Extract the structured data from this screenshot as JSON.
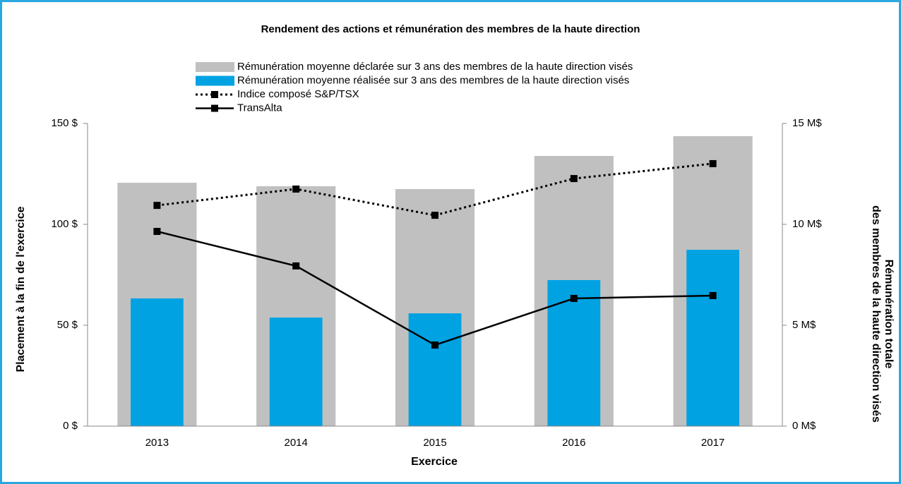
{
  "chart_data": {
    "type": "combo",
    "title": "Rendement des actions et rémunération des membres de la haute direction",
    "x_label": "Exercice",
    "y_label": "Placement à la fin de l'exercice",
    "y2_label": [
      "Rémunération totale",
      "des membres de la haute direction visés"
    ],
    "categories": [
      "2013",
      "2014",
      "2015",
      "2016",
      "2017"
    ],
    "ylim": [
      0,
      150
    ],
    "yticks": [
      {
        "value": 0,
        "label": "0 $"
      },
      {
        "value": 50,
        "label": "50 $"
      },
      {
        "value": 100,
        "label": "100 $"
      },
      {
        "value": 150,
        "label": "150 $"
      }
    ],
    "y2lim": [
      0,
      15
    ],
    "y2ticks": [
      {
        "value": 0,
        "label": "0 M$"
      },
      {
        "value": 5,
        "label": "5 M$"
      },
      {
        "value": 10,
        "label": "10 M$"
      },
      {
        "value": 15,
        "label": "15 M$"
      }
    ],
    "legend": "top",
    "series": [
      {
        "name": "Rémunération moyenne déclarée sur 3 ans des membres de la haute direction visés",
        "type": "bar",
        "axis": "y2",
        "color": "#c0c0c0",
        "width": 0.57,
        "values": [
          12.06,
          11.89,
          11.75,
          13.39,
          14.37
        ]
      },
      {
        "name": "Rémunération moyenne réalisée sur 3 ans des membres de la haute direction visés",
        "type": "bar",
        "axis": "y2",
        "color": "#00a2e2",
        "width": 0.38,
        "values": [
          6.33,
          5.38,
          5.59,
          7.24,
          8.74
        ]
      },
      {
        "name": "Indice composé S&P/TSX",
        "type": "line",
        "axis": "y",
        "color": "#000000",
        "linestyle": "dotted",
        "values": [
          109.4,
          117.5,
          104.5,
          122.7,
          130.1
        ]
      },
      {
        "name": "TransAlta",
        "type": "line",
        "axis": "y",
        "color": "#000000",
        "linestyle": "solid",
        "values": [
          96.5,
          79.4,
          40.2,
          63.3,
          64.7
        ]
      }
    ]
  }
}
